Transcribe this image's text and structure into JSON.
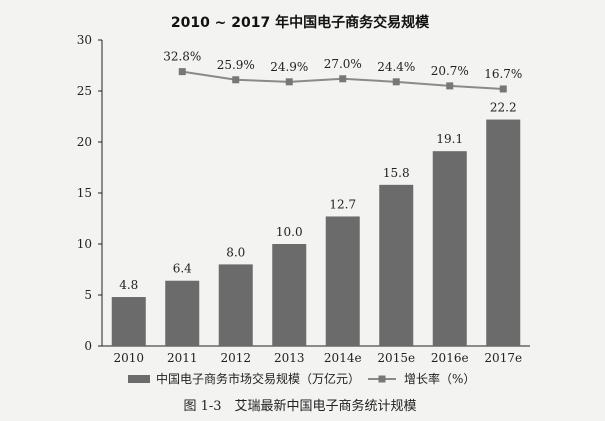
{
  "chart_data": {
    "type": "bar",
    "title": "2010 ~ 2017 年中国电子商务交易规模",
    "categories": [
      "2010",
      "2011",
      "2012",
      "2013",
      "2014e",
      "2015e",
      "2016e",
      "2017e"
    ],
    "ylim": [
      0,
      30
    ],
    "yticks": [
      "0",
      "5",
      "10",
      "15",
      "20",
      "25",
      "30"
    ],
    "grid": false,
    "series": [
      {
        "name": "中国电子商务市场交易规模（万亿元）",
        "type": "bar",
        "color": "#6b6b6b",
        "values": [
          4.8,
          6.4,
          8.0,
          10.0,
          12.7,
          15.8,
          19.1,
          22.2
        ],
        "labels": [
          "4.8",
          "6.4",
          "8.0",
          "10.0",
          "12.7",
          "15.8",
          "19.1",
          "22.2"
        ]
      },
      {
        "name": "增长率（%）",
        "type": "line",
        "color": "#8a8a8a",
        "categories": [
          "2011",
          "2012",
          "2013",
          "2014e",
          "2015e",
          "2016e",
          "2017e"
        ],
        "plot_y": [
          26.9,
          26.1,
          25.9,
          26.2,
          25.9,
          25.5,
          25.2
        ],
        "labels": [
          "32.8%",
          "25.9%",
          "24.9%",
          "27.0%",
          "24.4%",
          "20.7%",
          "16.7%"
        ]
      }
    ],
    "legend_position": "bottom"
  },
  "caption": "图 1-3　艾瑞最新中国电子商务统计规模"
}
